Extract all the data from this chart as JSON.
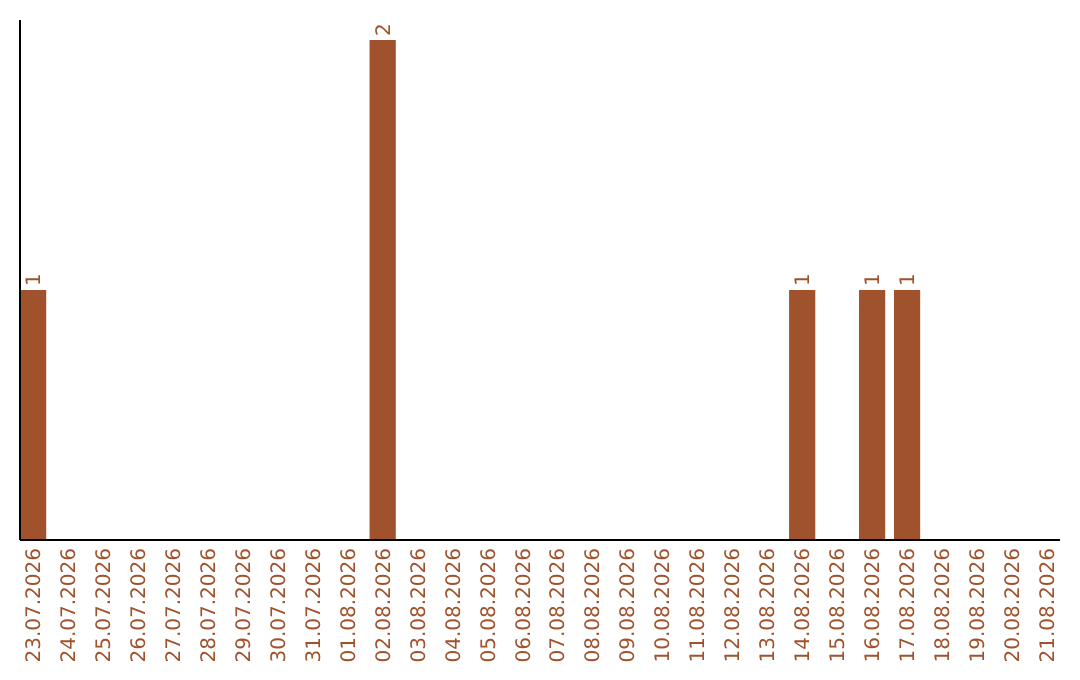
{
  "chart_data": {
    "type": "bar",
    "categories": [
      "23.07.2026",
      "24.07.2026",
      "25.07.2026",
      "26.07.2026",
      "27.07.2026",
      "28.07.2026",
      "29.07.2026",
      "30.07.2026",
      "31.07.2026",
      "01.08.2026",
      "02.08.2026",
      "03.08.2026",
      "04.08.2026",
      "05.08.2026",
      "06.08.2026",
      "07.08.2026",
      "08.08.2026",
      "09.08.2026",
      "10.08.2026",
      "11.08.2026",
      "12.08.2026",
      "13.08.2026",
      "14.08.2026",
      "15.08.2026",
      "16.08.2026",
      "17.08.2026",
      "18.08.2026",
      "19.08.2026",
      "20.08.2026",
      "21.08.2026"
    ],
    "values": [
      1,
      0,
      0,
      0,
      0,
      0,
      0,
      0,
      0,
      0,
      2,
      0,
      0,
      0,
      0,
      0,
      0,
      0,
      0,
      0,
      0,
      0,
      1,
      0,
      1,
      1,
      0,
      0,
      0,
      0
    ],
    "value_labels": [
      "1",
      null,
      null,
      null,
      null,
      null,
      null,
      null,
      null,
      null,
      "2",
      null,
      null,
      null,
      null,
      null,
      null,
      null,
      null,
      null,
      null,
      null,
      "1",
      null,
      "1",
      "1",
      null,
      null,
      null,
      null
    ],
    "color": "#a0522d",
    "ylim": [
      0,
      2.08
    ],
    "tick_labels": "x"
  }
}
